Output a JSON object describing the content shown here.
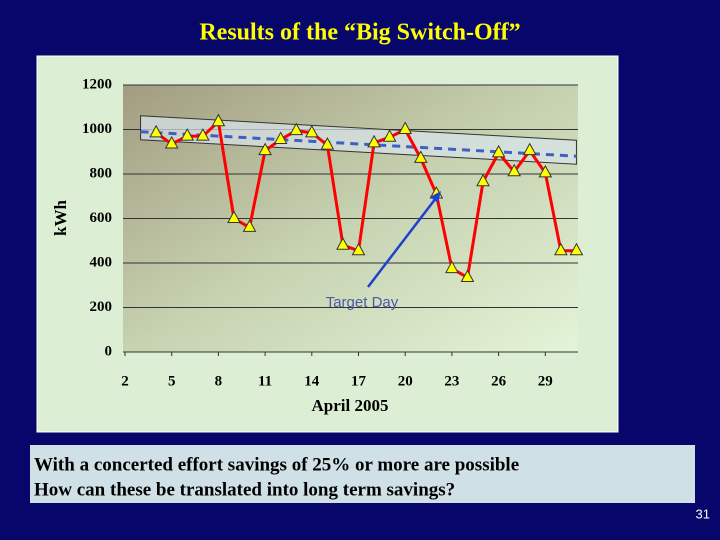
{
  "title": "Results of the “Big Switch-Off”",
  "chart_data": {
    "type": "line",
    "y_label": "kWh",
    "x_label": "April 2005",
    "x": [
      4,
      5,
      6,
      7,
      8,
      9,
      10,
      11,
      12,
      13,
      14,
      15,
      16,
      17,
      18,
      19,
      20,
      21,
      22,
      23,
      24,
      25,
      26,
      27,
      28,
      29,
      30,
      31
    ],
    "series": [
      {
        "color": "#ff0000",
        "marker_color": "#ffff00",
        "values": [
          985,
          935,
          970,
          970,
          1035,
          600,
          560,
          905,
          955,
          995,
          985,
          930,
          480,
          455,
          940,
          965,
          1000,
          870,
          710,
          375,
          335,
          765,
          895,
          810,
          905,
          805,
          455,
          455
        ]
      }
    ],
    "trend": {
      "x": [
        3,
        31
      ],
      "values": [
        990,
        880
      ],
      "color": "#4060c0"
    },
    "annotation": "Target Day",
    "xlim": [
      2,
      31.1
    ],
    "xticks": [
      2,
      5,
      8,
      11,
      14,
      17,
      20,
      23,
      26,
      29
    ],
    "ylim": [
      0,
      1200
    ],
    "yticks": [
      0,
      200,
      400,
      600,
      800,
      1000,
      1200
    ],
    "grid": true
  },
  "text_box": {
    "lines": [
      "With a concerted effort savings of 25% or more are possible",
      "How can these be translated into long term savings?"
    ]
  },
  "page_number": "31"
}
